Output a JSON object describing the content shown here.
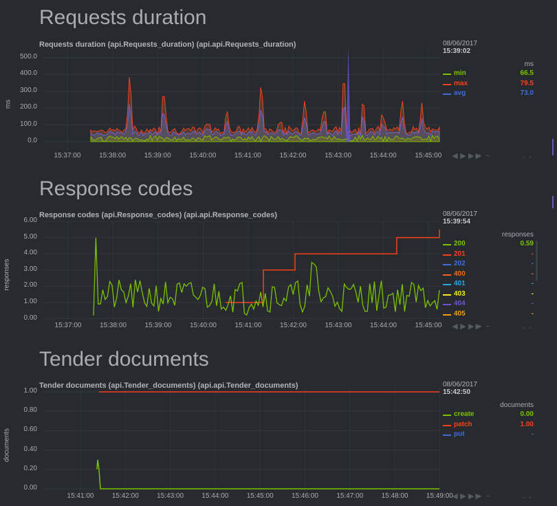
{
  "sections": [
    {
      "title": "Requests duration"
    },
    {
      "title": "Response codes"
    },
    {
      "title": "Tender documents"
    }
  ],
  "charts": [
    {
      "id": "requests",
      "title": "Requests duration (api.Requests_duration) (api.api.Requests_duration)",
      "unit": "ms",
      "legend_date": "08/06/2017",
      "legend_time": "15:39:02",
      "legend_unit": "ms",
      "dimensions": [
        {
          "name": "min",
          "value": "66.5",
          "color": "#7cc200"
        },
        {
          "name": "max",
          "value": "79.5",
          "color": "#f7411d"
        },
        {
          "name": "avg",
          "value": "73.0",
          "color": "#3e6ed6"
        }
      ],
      "y_ticks": [
        "500.0",
        "400.0",
        "300.0",
        "200.0",
        "100.0",
        "0.0"
      ],
      "x_ticks": [
        "15:37:00",
        "15:38:00",
        "15:39:00",
        "15:40:00",
        "15:41:00",
        "15:42:00",
        "15:43:00",
        "15:44:00",
        "15:45:00"
      ]
    },
    {
      "id": "codes",
      "title": "Response codes (api.Response_codes) (api.api.Response_codes)",
      "unit": "responses",
      "legend_date": "08/06/2017",
      "legend_time": "15:39:54",
      "legend_unit": "responses",
      "dimensions": [
        {
          "name": "200",
          "value": "0.59",
          "color": "#7cc200"
        },
        {
          "name": "201",
          "value": "-",
          "color": "#f7411d"
        },
        {
          "name": "202",
          "value": "-",
          "color": "#3e6ed6"
        },
        {
          "name": "400",
          "value": "-",
          "color": "#ee6b1d"
        },
        {
          "name": "401",
          "value": "-",
          "color": "#2aa7dd"
        },
        {
          "name": "403",
          "value": "-",
          "color": "#f2ea1e"
        },
        {
          "name": "404",
          "value": "-",
          "color": "#6a55cf"
        },
        {
          "name": "405",
          "value": "-",
          "color": "#f39c12"
        }
      ],
      "y_ticks": [
        "6.00",
        "5.00",
        "4.00",
        "3.00",
        "2.00",
        "1.00",
        "0.00"
      ],
      "x_ticks": [
        "15:37:00",
        "15:38:00",
        "15:39:00",
        "15:40:00",
        "15:41:00",
        "15:42:00",
        "15:43:00",
        "15:44:00",
        "15:45:00"
      ]
    },
    {
      "id": "tender",
      "title": "Tender documents (api.Tender_documents) (api.api.Tender_documents)",
      "unit": "documents",
      "legend_date": "08/06/2017",
      "legend_time": "15:42:50",
      "legend_unit": "documents",
      "dimensions": [
        {
          "name": "create",
          "value": "0.00",
          "color": "#7cc200"
        },
        {
          "name": "patch",
          "value": "1.00",
          "color": "#f7411d"
        },
        {
          "name": "put",
          "value": "-",
          "color": "#3e6ed6"
        }
      ],
      "y_ticks": [
        "1.00",
        "0.80",
        "0.60",
        "0.40",
        "0.20",
        "0.00"
      ],
      "x_ticks": [
        "15:41:00",
        "15:42:00",
        "15:43:00",
        "15:44:00",
        "15:45:00",
        "15:46:00",
        "15:47:00",
        "15:48:00",
        "15:49:00"
      ]
    }
  ],
  "controls": {
    "icons": [
      "step-back-icon",
      "play-icon",
      "step-forward-icon",
      "zoom-in-icon",
      "zoom-out-icon"
    ],
    "glyphs": [
      "◀",
      "▶",
      "▶▶",
      "+",
      "−"
    ],
    "resize": "⌄⌄"
  },
  "chart_data": [
    {
      "type": "area",
      "title": "Requests duration (api.Requests_duration) (api.api.Requests_duration)",
      "ylabel": "ms",
      "ylim": [
        0,
        580
      ],
      "x": [
        "15:37:00",
        "15:38:00",
        "15:39:00",
        "15:40:00",
        "15:41:00",
        "15:42:00",
        "15:43:00",
        "15:44:00",
        "15:45:00"
      ],
      "series": [
        {
          "name": "min",
          "color": "#7cc200"
        },
        {
          "name": "max",
          "color": "#f7411d"
        },
        {
          "name": "avg",
          "color": "#3e6ed6"
        }
      ]
    },
    {
      "type": "line",
      "title": "Response codes (api.Response_codes) (api.api.Response_codes)",
      "ylabel": "responses",
      "ylim": [
        0,
        6
      ],
      "series": [
        {
          "name": "200",
          "color": "#7cc200"
        },
        {
          "name": "201",
          "color": "#f7411d",
          "steps": [
            [
              "15:40:30",
              1.0
            ],
            [
              "15:41:25",
              3.0
            ],
            [
              "15:41:50",
              4.0
            ],
            [
              "15:43:35",
              5.0
            ],
            [
              "15:44:35",
              5.0
            ]
          ]
        }
      ]
    },
    {
      "type": "line",
      "title": "Tender documents (api.Tender_documents) (api.api.Tender_documents)",
      "ylabel": "documents",
      "ylim": [
        0,
        1
      ],
      "series": [
        {
          "name": "create",
          "color": "#7cc200",
          "values": [
            0.2,
            0.3,
            0.0,
            0.0
          ]
        },
        {
          "name": "patch",
          "color": "#f7411d",
          "values": [
            1.0,
            1.0
          ]
        },
        {
          "name": "put",
          "color": "#3e6ed6"
        }
      ]
    }
  ]
}
